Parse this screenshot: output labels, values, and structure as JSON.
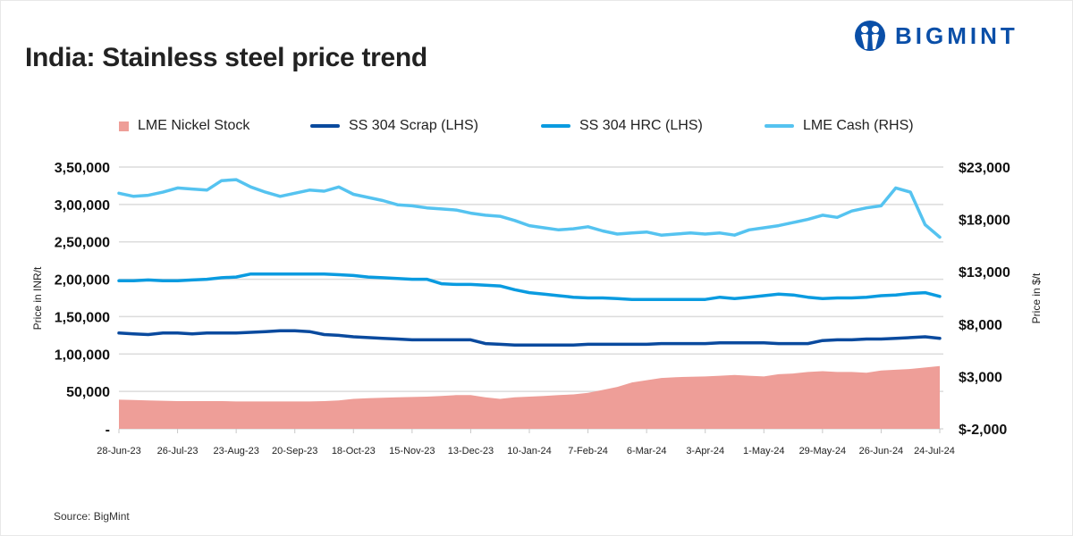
{
  "header": {
    "title": "India: Stainless steel price trend",
    "brand": "BIGMINT"
  },
  "footer": {
    "source": "Source: BigMint"
  },
  "colors": {
    "nickel_stock": "#ee9e98",
    "ss304_scrap": "#0a4a9e",
    "ss304_hrc": "#0a9be0",
    "lme_cash": "#55c3f0",
    "grid": "#dcdcdc",
    "brand": "#0a4fa8"
  },
  "chart_data": {
    "type": "line",
    "title": "India: Stainless steel price trend",
    "ylabel": "Price in INR/t",
    "y2label": "Price in $/t",
    "ylim": [
      0,
      350000
    ],
    "y2lim": [
      -2000,
      23000
    ],
    "yticks": [
      "-",
      "50,000",
      "1,00,000",
      "1,50,000",
      "2,00,000",
      "2,50,000",
      "3,00,000",
      "3,50,000"
    ],
    "y2ticks": [
      "$-2,000",
      "$3,000",
      "$8,000",
      "$13,000",
      "$18,000",
      "$23,000"
    ],
    "grid": true,
    "legend_position": "top",
    "xtick_labels": [
      "28-Jun-23",
      "26-Jul-23",
      "23-Aug-23",
      "20-Sep-23",
      "18-Oct-23",
      "15-Nov-23",
      "13-Dec-23",
      "10-Jan-24",
      "7-Feb-24",
      "6-Mar-24",
      "3-Apr-24",
      "1-May-24",
      "29-May-24",
      "26-Jun-24",
      "24-Jul-24"
    ],
    "x_count": 57,
    "x_note": "weekly points from 28-Jun-23 to 24-Jul-24",
    "series": [
      {
        "name": "LME Nickel Stock",
        "kind": "area",
        "axis": "left",
        "values": [
          39000,
          38500,
          38000,
          37500,
          37000,
          37000,
          37000,
          37000,
          36500,
          36500,
          36500,
          36500,
          36500,
          36500,
          37000,
          38000,
          40000,
          41000,
          41500,
          42000,
          42500,
          43000,
          44000,
          45000,
          45000,
          42000,
          40000,
          42000,
          43000,
          44000,
          45000,
          46000,
          48000,
          52000,
          56000,
          62000,
          65000,
          68000,
          69000,
          69500,
          70000,
          71000,
          72000,
          71000,
          70000,
          73000,
          74000,
          76000,
          77000,
          76000,
          76000,
          75000,
          78000,
          79000,
          80000,
          82000,
          84000
        ]
      },
      {
        "name": "SS 304 Scrap (LHS)",
        "kind": "line",
        "axis": "left",
        "values": [
          128000,
          127000,
          126000,
          128000,
          128000,
          127000,
          128000,
          128000,
          128000,
          129000,
          130000,
          131000,
          131000,
          130000,
          126000,
          125000,
          123000,
          122000,
          121000,
          120000,
          119000,
          119000,
          119000,
          119000,
          119000,
          114000,
          113000,
          112000,
          112000,
          112000,
          112000,
          112000,
          113000,
          113000,
          113000,
          113000,
          113000,
          114000,
          114000,
          114000,
          114000,
          115000,
          115000,
          115000,
          115000,
          114000,
          114000,
          114000,
          118000,
          119000,
          119000,
          120000,
          120000,
          121000,
          122000,
          123000,
          121000
        ]
      },
      {
        "name": "SS 304 HRC (LHS)",
        "kind": "line",
        "axis": "left",
        "values": [
          198000,
          198000,
          199000,
          198000,
          198000,
          199000,
          200000,
          202000,
          203000,
          207000,
          207000,
          207000,
          207000,
          207000,
          207000,
          206000,
          205000,
          203000,
          202000,
          201000,
          200000,
          200000,
          194000,
          193000,
          193000,
          192000,
          191000,
          186000,
          182000,
          180000,
          178000,
          176000,
          175000,
          175000,
          174000,
          173000,
          173000,
          173000,
          173000,
          173000,
          173000,
          176000,
          174000,
          176000,
          178000,
          180000,
          179000,
          176000,
          174000,
          175000,
          175000,
          176000,
          178000,
          179000,
          181000,
          182000,
          177000
        ]
      },
      {
        "name": "LME Cash (RHS)",
        "kind": "line",
        "axis": "right",
        "values": [
          20500,
          20200,
          20300,
          20600,
          21000,
          20900,
          20800,
          21700,
          21800,
          21100,
          20600,
          20200,
          20500,
          20800,
          20700,
          21100,
          20400,
          20100,
          19800,
          19400,
          19300,
          19100,
          19000,
          18900,
          18600,
          18400,
          18300,
          17900,
          17400,
          17200,
          17000,
          17100,
          17300,
          16900,
          16600,
          16700,
          16800,
          16500,
          16600,
          16700,
          16600,
          16700,
          16500,
          17000,
          17200,
          17400,
          17700,
          18000,
          18400,
          18200,
          18800,
          19100,
          19300,
          21000,
          20600,
          17500,
          16300
        ]
      }
    ]
  },
  "legend": [
    {
      "label": "LME Nickel Stock",
      "type": "box"
    },
    {
      "label": "SS 304 Scrap (LHS)",
      "type": "line"
    },
    {
      "label": "SS 304 HRC (LHS)",
      "type": "line"
    },
    {
      "label": "LME Cash (RHS)",
      "type": "line"
    }
  ]
}
